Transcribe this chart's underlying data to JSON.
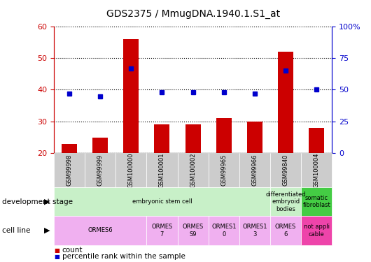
{
  "title": "GDS2375 / MmugDNA.1940.1.S1_at",
  "samples": [
    "GSM99998",
    "GSM99999",
    "GSM100000",
    "GSM100001",
    "GSM100002",
    "GSM99965",
    "GSM99966",
    "GSM99840",
    "GSM100004"
  ],
  "counts": [
    23,
    25,
    56,
    29,
    29,
    31,
    30,
    52,
    28
  ],
  "percentiles": [
    47,
    45,
    67,
    48,
    48,
    48,
    47,
    65,
    50
  ],
  "ylim_left": [
    20,
    60
  ],
  "ylim_right": [
    0,
    100
  ],
  "left_ticks": [
    20,
    30,
    40,
    50,
    60
  ],
  "right_ticks": [
    0,
    25,
    50,
    75,
    100
  ],
  "right_tick_labels": [
    "0",
    "25",
    "50",
    "75",
    "100%"
  ],
  "bar_color": "#cc0000",
  "dot_color": "#0000cc",
  "bar_width": 0.5,
  "background_color": "#ffffff",
  "dev_stage_cells": [
    {
      "text": "embryonic stem cell",
      "span": 7,
      "color": "#c8f0c8"
    },
    {
      "text": "differentiated\nembryoid\nbodies",
      "span": 1,
      "color": "#c8f0c8"
    },
    {
      "text": "somatic\nfibroblast",
      "span": 1,
      "color": "#44cc44"
    }
  ],
  "cell_line_cells": [
    {
      "text": "ORMES6",
      "span": 3,
      "color": "#f0b0f0"
    },
    {
      "text": "ORMES\n7",
      "span": 1,
      "color": "#f0b0f0"
    },
    {
      "text": "ORMES\nS9",
      "span": 1,
      "color": "#f0b0f0"
    },
    {
      "text": "ORMES1\n0",
      "span": 1,
      "color": "#f0b0f0"
    },
    {
      "text": "ORMES1\n3",
      "span": 1,
      "color": "#f0b0f0"
    },
    {
      "text": "ORMES\n6",
      "span": 1,
      "color": "#f0b0f0"
    },
    {
      "text": "not appli\ncable",
      "span": 1,
      "color": "#ee44aa"
    }
  ],
  "xlabel_color": "#cc0000",
  "ylabel_right_color": "#0000cc",
  "title_fontsize": 10,
  "tick_fontsize": 8,
  "sample_label_fontsize": 6,
  "annot_fontsize": 6,
  "legend_fontsize": 7.5,
  "row_label_fontsize": 7.5
}
